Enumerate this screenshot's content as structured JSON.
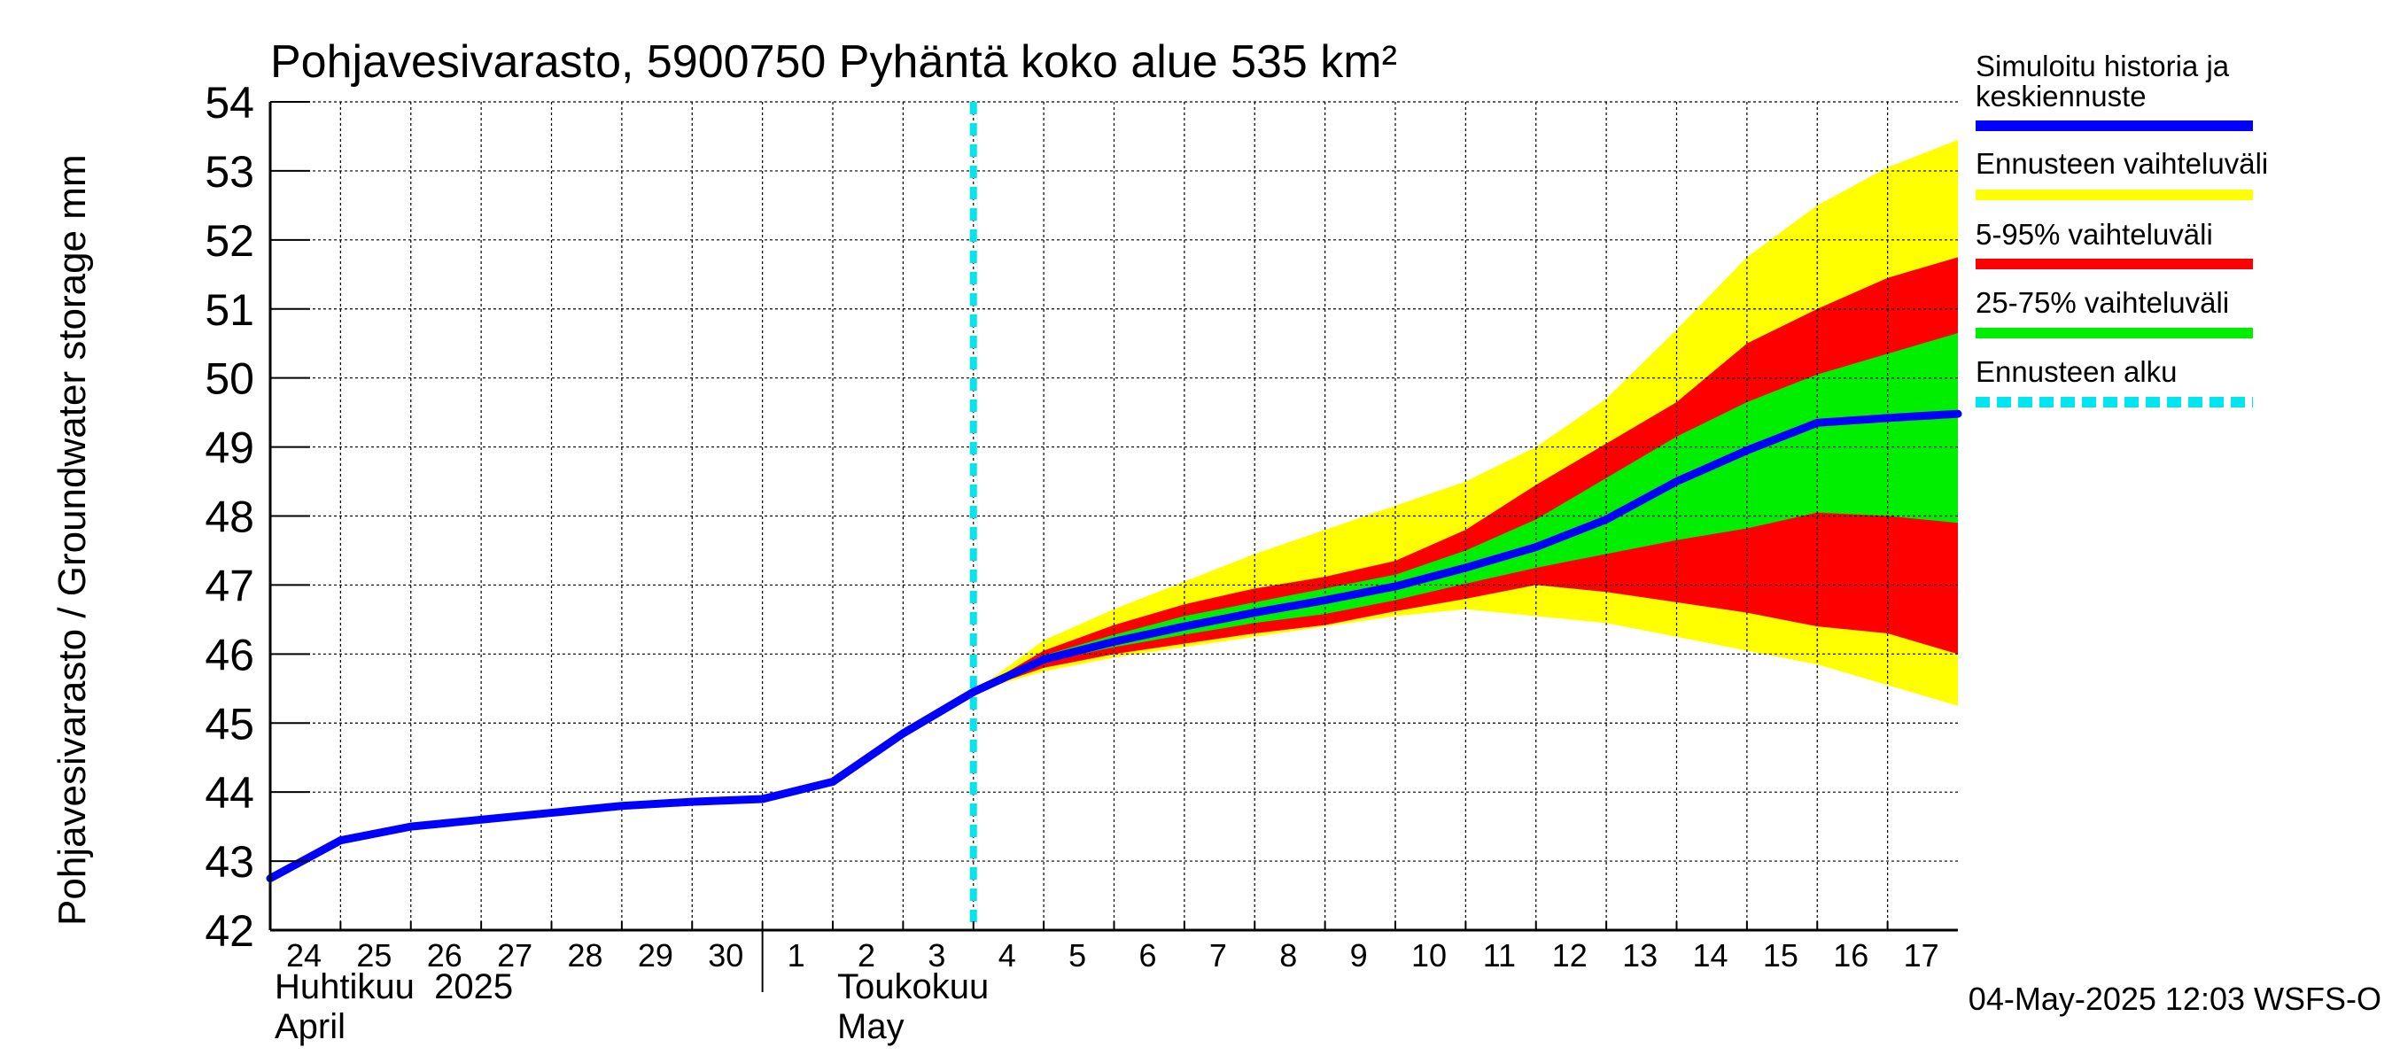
{
  "colors": {
    "history": "#0000ff",
    "range_full": "#ffff00",
    "range_5_95": "#ff0000",
    "range_25_75": "#00ee00",
    "forecast_start": "#00e5ee"
  },
  "chart_data": {
    "type": "area",
    "title": "Pohjavesivarasto, 5900750 Pyhäntä koko alue 535 km²",
    "ylabel": "Pohjavesivarasto / Groundwater storage   mm",
    "ylim": [
      42,
      54
    ],
    "yticks": [
      42,
      43,
      44,
      45,
      46,
      47,
      48,
      49,
      50,
      51,
      52,
      53,
      54
    ],
    "x_range": [
      0,
      24
    ],
    "x_ticks": [
      {
        "x": 0,
        "label": "24"
      },
      {
        "x": 1,
        "label": "25"
      },
      {
        "x": 2,
        "label": "26"
      },
      {
        "x": 3,
        "label": "27"
      },
      {
        "x": 4,
        "label": "28"
      },
      {
        "x": 5,
        "label": "29"
      },
      {
        "x": 6,
        "label": "30"
      },
      {
        "x": 7,
        "label": "1"
      },
      {
        "x": 8,
        "label": "2"
      },
      {
        "x": 9,
        "label": "3"
      },
      {
        "x": 10,
        "label": "4"
      },
      {
        "x": 11,
        "label": "5"
      },
      {
        "x": 12,
        "label": "6"
      },
      {
        "x": 13,
        "label": "7"
      },
      {
        "x": 14,
        "label": "8"
      },
      {
        "x": 15,
        "label": "9"
      },
      {
        "x": 16,
        "label": "10"
      },
      {
        "x": 17,
        "label": "11"
      },
      {
        "x": 18,
        "label": "12"
      },
      {
        "x": 19,
        "label": "13"
      },
      {
        "x": 20,
        "label": "14"
      },
      {
        "x": 21,
        "label": "15"
      },
      {
        "x": 22,
        "label": "16"
      },
      {
        "x": 23,
        "label": "17"
      }
    ],
    "month_labels": [
      {
        "x": 0,
        "line1": "Huhtikuu  2025",
        "line2": "April"
      },
      {
        "x": 8,
        "line1": "Toukokuu",
        "line2": "May"
      }
    ],
    "month_boundary_x": 7,
    "forecast_start_x": 10,
    "series": [
      {
        "name": "Simuloitu historia ja keskiennuste",
        "x": [
          0,
          1,
          2,
          3,
          4,
          5,
          6,
          7,
          8,
          9,
          10,
          11,
          12,
          13,
          14,
          15,
          16,
          17,
          18,
          19,
          20,
          21,
          22,
          23,
          24
        ],
        "values": [
          42.75,
          43.3,
          43.5,
          43.6,
          43.7,
          43.8,
          43.86,
          43.9,
          44.15,
          44.85,
          45.45,
          45.92,
          46.18,
          46.4,
          46.6,
          46.78,
          46.98,
          47.25,
          47.55,
          47.95,
          48.5,
          48.95,
          49.35,
          49.42,
          49.48
        ]
      }
    ],
    "bands": [
      {
        "name": "Ennusteen vaihteluväli",
        "x": [
          10,
          11,
          12,
          13,
          14,
          15,
          16,
          17,
          18,
          19,
          20,
          21,
          22,
          23,
          24
        ],
        "lower": [
          45.45,
          45.75,
          45.95,
          46.1,
          46.25,
          46.4,
          46.55,
          46.65,
          46.55,
          46.45,
          46.25,
          46.05,
          45.85,
          45.55,
          45.25
        ],
        "upper": [
          45.45,
          46.2,
          46.65,
          47.05,
          47.45,
          47.8,
          48.15,
          48.5,
          49.0,
          49.7,
          50.7,
          51.75,
          52.5,
          53.05,
          53.45
        ]
      },
      {
        "name": "5-95% vaihteluväli",
        "x": [
          10,
          11,
          12,
          13,
          14,
          15,
          16,
          17,
          18,
          19,
          20,
          21,
          22,
          23,
          24
        ],
        "lower": [
          45.45,
          45.8,
          46.0,
          46.15,
          46.3,
          46.42,
          46.62,
          46.8,
          47.0,
          46.9,
          46.75,
          46.6,
          46.4,
          46.3,
          46.0
        ],
        "upper": [
          45.45,
          46.05,
          46.42,
          46.72,
          46.95,
          47.12,
          47.35,
          47.8,
          48.45,
          49.05,
          49.65,
          50.5,
          51.0,
          51.45,
          51.75
        ]
      },
      {
        "name": "25-75% vaihteluväli",
        "x": [
          10,
          11,
          12,
          13,
          14,
          15,
          16,
          17,
          18,
          19,
          20,
          21,
          22,
          23,
          24
        ],
        "lower": [
          45.45,
          45.88,
          46.1,
          46.28,
          46.45,
          46.58,
          46.78,
          47.02,
          47.25,
          47.45,
          47.65,
          47.82,
          48.05,
          48.0,
          47.9
        ],
        "upper": [
          45.45,
          45.98,
          46.28,
          46.55,
          46.75,
          46.95,
          47.15,
          47.5,
          47.95,
          48.55,
          49.15,
          49.65,
          50.05,
          50.35,
          50.65
        ]
      }
    ],
    "legend": [
      {
        "label_lines": [
          "Simuloitu historia ja",
          "keskiennuste"
        ],
        "color_key": "history",
        "style": "solid"
      },
      {
        "label_lines": [
          "Ennusteen vaihteluväli"
        ],
        "color_key": "range_full",
        "style": "solid"
      },
      {
        "label_lines": [
          "5-95% vaihteluväli"
        ],
        "color_key": "range_5_95",
        "style": "solid"
      },
      {
        "label_lines": [
          "25-75% vaihteluväli"
        ],
        "color_key": "range_25_75",
        "style": "solid"
      },
      {
        "label_lines": [
          "Ennusteen alku"
        ],
        "color_key": "forecast_start",
        "style": "dashed"
      }
    ],
    "legend_position": "right",
    "grid": true
  },
  "footer": {
    "timestamp": "04-May-2025 12:03 WSFS-O"
  }
}
